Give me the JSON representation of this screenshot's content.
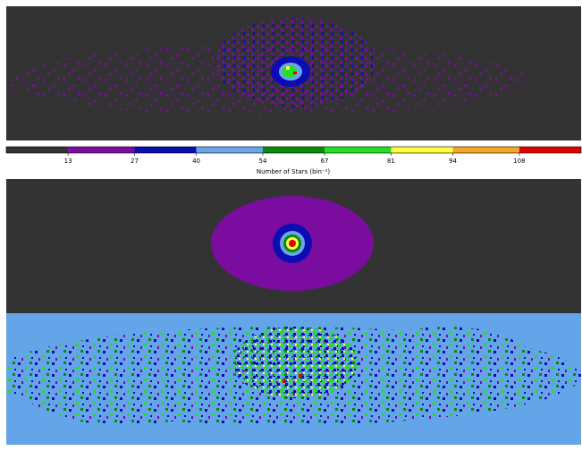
{
  "chart_data": {
    "type": "colorbar",
    "xlabel": "Number of Stars (bin⁻²)",
    "xlim": [
      0,
      121
    ],
    "xticks": [
      13,
      27,
      40,
      54,
      67,
      81,
      94,
      108
    ],
    "colors": [
      "#333333",
      "#7a0ca0",
      "#0c0cb4",
      "#6aa6e6",
      "#0a8a0a",
      "#22e022",
      "#ffff40",
      "#f5a623",
      "#e00000"
    ]
  }
}
